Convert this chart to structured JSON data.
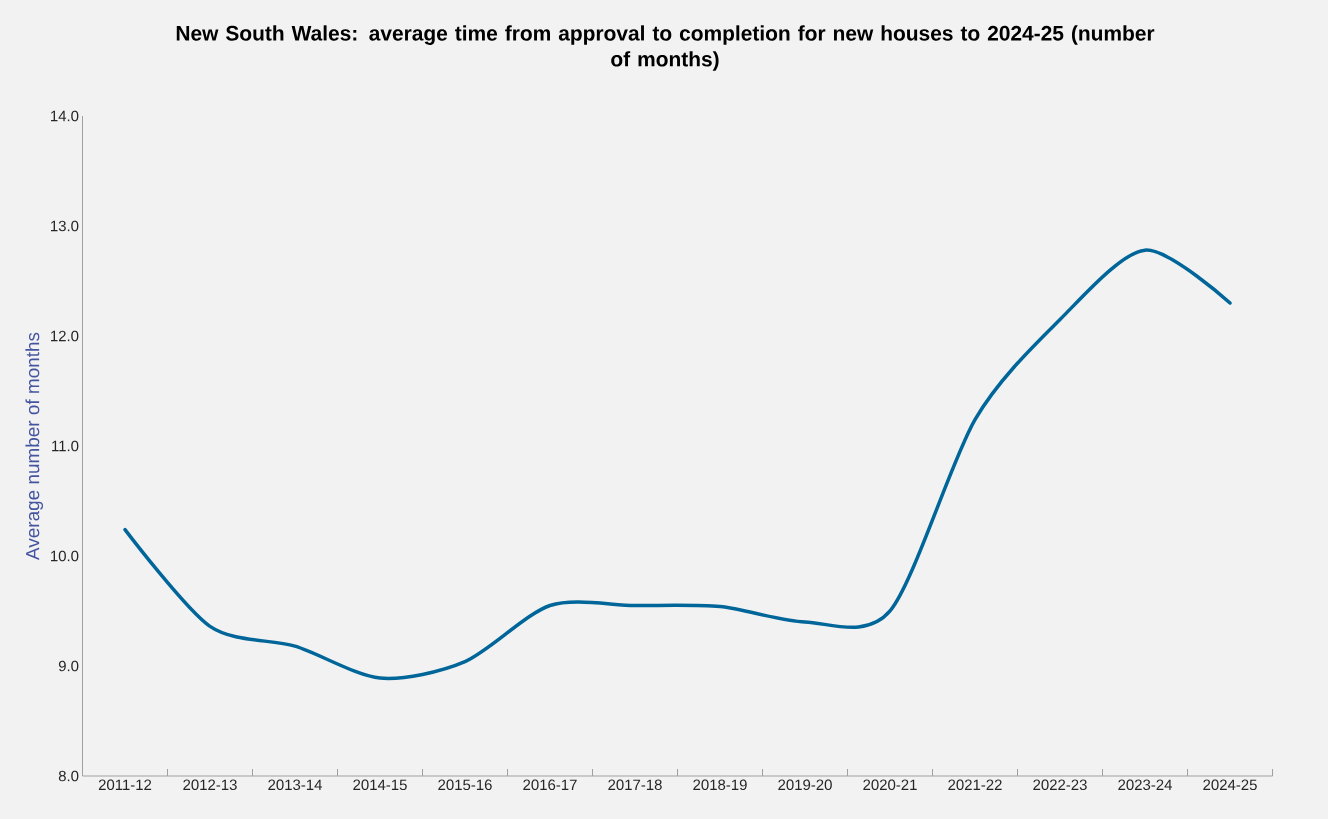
{
  "chart_data": {
    "type": "line",
    "title": "New South Wales: average time from approval to completion for new houses to 2024-25 (number of months)",
    "ylabel": "Average number of months",
    "categories": [
      "2011-12",
      "2012-13",
      "2013-14",
      "2014-15",
      "2015-16",
      "2016-17",
      "2017-18",
      "2018-19",
      "2019-20",
      "2020-21",
      "2021-22",
      "2022-23",
      "2023-24",
      "2024-25"
    ],
    "series": [
      {
        "color": "#00669a",
        "values": [
          10.24,
          9.36,
          9.18,
          8.89,
          9.04,
          9.55,
          9.55,
          9.54,
          9.4,
          9.5,
          11.24,
          12.15,
          12.78,
          12.3
        ]
      }
    ],
    "ylim": [
      8,
      14
    ],
    "yticks": [
      {
        "value": 8,
        "label": "8.0"
      },
      {
        "value": 9,
        "label": "9.0"
      },
      {
        "value": 10,
        "label": "10.0"
      },
      {
        "value": 11,
        "label": "11.0"
      },
      {
        "value": 12,
        "label": "12.0"
      },
      {
        "value": 13,
        "label": "13.0"
      },
      {
        "value": 14,
        "label": "14.0"
      }
    ],
    "grid": false,
    "legend": false,
    "marker": "none",
    "line_style": "solid"
  }
}
